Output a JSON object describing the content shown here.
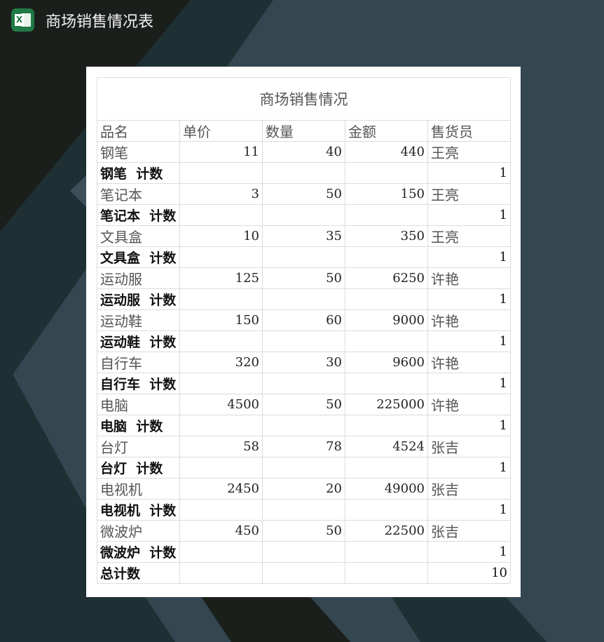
{
  "app": {
    "title": "商场销售情况表",
    "icon": "excel-icon",
    "icon_letter": "X"
  },
  "sheet": {
    "title": "商场销售情况",
    "headers": [
      "品名",
      "单价",
      "数量",
      "金额",
      "售货员"
    ],
    "rows": [
      {
        "type": "data",
        "cells": [
          "钢笔",
          "11",
          "40",
          "440",
          "王亮"
        ]
      },
      {
        "type": "sub",
        "label": "钢笔  计数",
        "count": "1"
      },
      {
        "type": "data",
        "cells": [
          "笔记本",
          "3",
          "50",
          "150",
          "王亮"
        ]
      },
      {
        "type": "sub",
        "label": "笔记本  计数",
        "count": "1"
      },
      {
        "type": "data",
        "cells": [
          "文具盒",
          "10",
          "35",
          "350",
          "王亮"
        ]
      },
      {
        "type": "sub",
        "label": "文具盒  计数",
        "count": "1"
      },
      {
        "type": "data",
        "cells": [
          "运动服",
          "125",
          "50",
          "6250",
          "许艳"
        ]
      },
      {
        "type": "sub",
        "label": "运动服  计数",
        "count": "1"
      },
      {
        "type": "data",
        "cells": [
          "运动鞋",
          "150",
          "60",
          "9000",
          "许艳"
        ]
      },
      {
        "type": "sub",
        "label": "运动鞋  计数",
        "count": "1"
      },
      {
        "type": "data",
        "cells": [
          "自行车",
          "320",
          "30",
          "9600",
          "许艳"
        ]
      },
      {
        "type": "sub",
        "label": "自行车  计数",
        "count": "1"
      },
      {
        "type": "data",
        "cells": [
          "电脑",
          "4500",
          "50",
          "225000",
          "许艳"
        ]
      },
      {
        "type": "sub",
        "label": "电脑  计数",
        "count": "1"
      },
      {
        "type": "data",
        "cells": [
          "台灯",
          "58",
          "78",
          "4524",
          "张吉"
        ]
      },
      {
        "type": "sub",
        "label": "台灯  计数",
        "count": "1"
      },
      {
        "type": "data",
        "cells": [
          "电视机",
          "2450",
          "20",
          "49000",
          "张吉"
        ]
      },
      {
        "type": "sub",
        "label": "电视机  计数",
        "count": "1"
      },
      {
        "type": "data",
        "cells": [
          "微波炉",
          "450",
          "50",
          "22500",
          "张吉"
        ]
      },
      {
        "type": "sub",
        "label": "微波炉  计数",
        "count": "1"
      },
      {
        "type": "sub",
        "label": "总计数",
        "count": "10"
      }
    ]
  },
  "colors": {
    "excel_green": "#1f7a45",
    "bg_dark": "#1b1f1c",
    "bg_teal": "#1f3035",
    "bg_slate": "#344650"
  }
}
